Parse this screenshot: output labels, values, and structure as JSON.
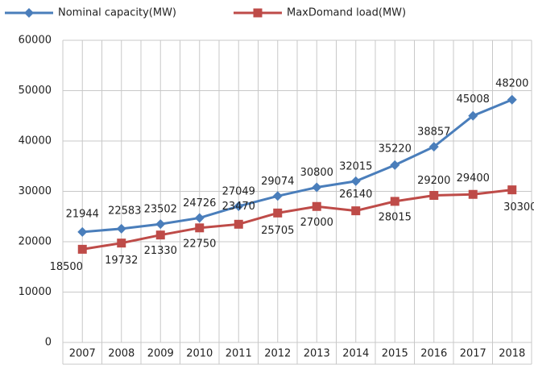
{
  "chart_data": {
    "type": "line",
    "categories": [
      "2007",
      "2008",
      "2009",
      "2010",
      "2011",
      "2012",
      "2013",
      "2014",
      "2015",
      "2016",
      "2017",
      "2018"
    ],
    "series": [
      {
        "name": "Nominal capacity(MW)",
        "color": "#4a7ebb",
        "marker": "diamond",
        "values": [
          21944,
          22583,
          23502,
          24726,
          27049,
          29074,
          30800,
          32015,
          35220,
          38857,
          45008,
          48200
        ]
      },
      {
        "name": "MaxDomand load(MW)",
        "color": "#be4b48",
        "marker": "square",
        "values": [
          18500,
          19732,
          21330,
          22750,
          23470,
          25705,
          27000,
          26140,
          28015,
          29200,
          29400,
          30300
        ]
      }
    ],
    "ylim": [
      0,
      60000
    ],
    "yticks": [
      0,
      10000,
      20000,
      30000,
      40000,
      50000,
      60000
    ],
    "grid": true
  }
}
